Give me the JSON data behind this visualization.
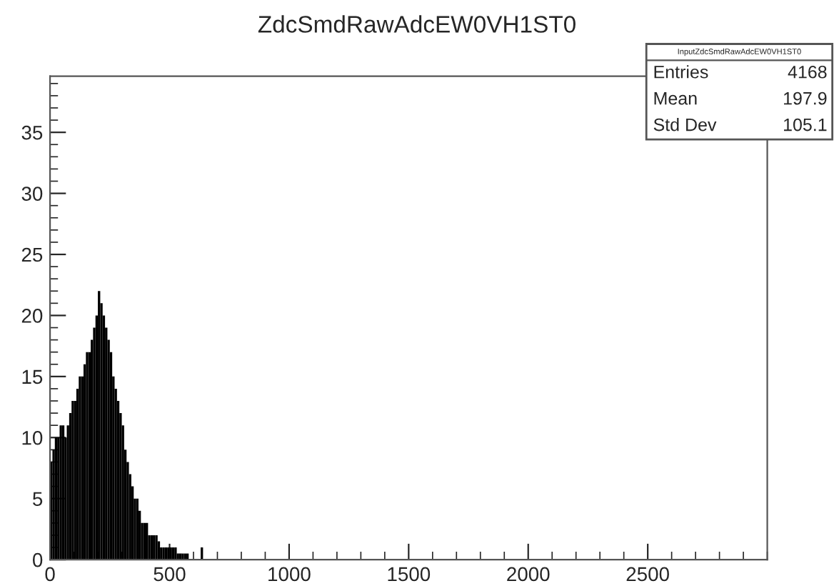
{
  "chart_data": {
    "type": "histogram",
    "title": "ZdcSmdRawAdcEW0VH1ST0",
    "bins": [
      0,
      10,
      20,
      30,
      40,
      50,
      60,
      70,
      80,
      90,
      100,
      110,
      120,
      130,
      140,
      150,
      160,
      170,
      180,
      190,
      200,
      210,
      220,
      230,
      240,
      250,
      260,
      270,
      280,
      290,
      300,
      310,
      320,
      330,
      340,
      350,
      360,
      370,
      380,
      390,
      400,
      410,
      420,
      430,
      440,
      450,
      460,
      470,
      480,
      490,
      500,
      510,
      520,
      530,
      540,
      550,
      560,
      570,
      580,
      590,
      600,
      610,
      620,
      630,
      640,
      650
    ],
    "values": [
      8,
      9,
      10,
      10,
      11,
      11,
      10,
      11,
      12,
      13,
      13,
      14,
      15,
      15,
      16,
      17,
      17,
      18,
      19,
      20,
      22,
      21,
      20,
      19,
      18,
      17,
      15,
      14,
      13,
      12,
      11,
      9,
      8,
      7,
      6,
      5,
      5,
      4,
      3,
      3,
      3,
      2,
      2,
      2,
      2,
      1.5,
      1,
      1,
      1,
      1,
      1,
      1,
      1,
      0.5,
      0.5,
      0.5,
      0.5,
      0.5,
      0,
      0,
      0,
      0,
      0,
      1,
      0
    ],
    "color": "#000000",
    "xlim": [
      0,
      3000
    ],
    "ylim": [
      0,
      39.6
    ],
    "xticks": [
      0,
      500,
      1000,
      1500,
      2000,
      2500
    ],
    "yticks": [
      0,
      5,
      10,
      15,
      20,
      25,
      30,
      35
    ],
    "grid": false,
    "annotations": [
      "InputZdcSmdRawAdcEW0VH1ST0",
      "Entries",
      "4168",
      "Mean",
      "197.9",
      "Std Dev",
      "105.1"
    ]
  }
}
